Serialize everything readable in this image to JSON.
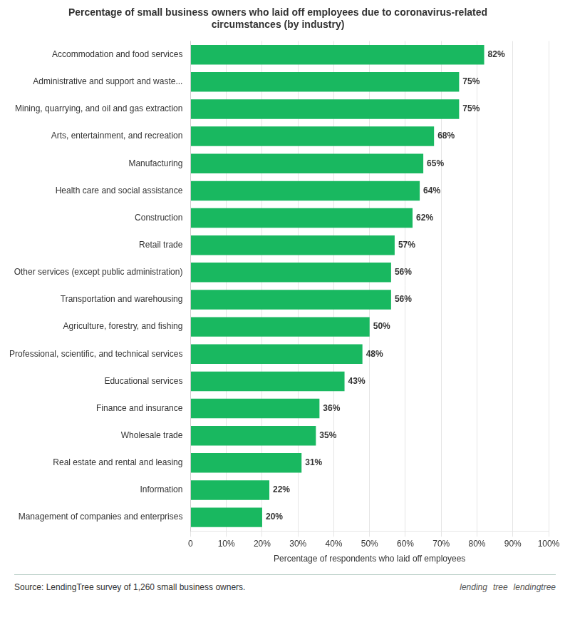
{
  "chart_data": {
    "type": "bar",
    "orientation": "horizontal",
    "title": [
      "Percentage of small business owners who laid off employees due to coronavirus-related",
      "circumstances (by industry)"
    ],
    "x_label": "Percentage of respondents who laid off employees",
    "categories": [
      "Accommodation and food services",
      "Administrative and support and waste...",
      "Mining, quarrying, and oil and gas extraction",
      "Arts, entertainment, and recreation",
      "Manufacturing",
      "Health care and social assistance",
      "Construction",
      "Retail trade",
      "Other services (except public administration)",
      "Transportation and warehousing",
      "Agriculture, forestry, and fishing",
      "Professional, scientific, and technical services",
      "Educational services",
      "Finance and insurance",
      "Wholesale trade",
      "Real estate and rental and leasing",
      "Information",
      "Management of companies and enterprises"
    ],
    "values": [
      82,
      75,
      75,
      68,
      65,
      64,
      62,
      57,
      56,
      56,
      50,
      48,
      43,
      36,
      35,
      31,
      22,
      20
    ],
    "value_labels": [
      "82%",
      "75%",
      "75%",
      "68%",
      "65%",
      "64%",
      "62%",
      "57%",
      "56%",
      "56%",
      "50%",
      "48%",
      "43%",
      "36%",
      "35%",
      "31%",
      "22%",
      "20%"
    ],
    "data_labels": true,
    "color": "#19b860",
    "xlim": [
      0,
      100
    ],
    "xticks": [
      0,
      {
        "value": 10,
        "label": "10%"
      },
      {
        "value": 20,
        "label": "20%"
      },
      {
        "value": 30,
        "label": "30%"
      },
      {
        "value": 40,
        "label": "40%"
      },
      {
        "value": 50,
        "label": "50%"
      },
      {
        "value": 60,
        "label": "60%"
      },
      {
        "value": 70,
        "label": "70%"
      },
      {
        "value": 80,
        "label": "80%"
      },
      {
        "value": 90,
        "label": "90%"
      },
      {
        "value": 100,
        "label": "100%"
      }
    ],
    "grid": true,
    "annotations": [
      "Source: LendingTree survey of 1,260 small business owners.",
      "lending",
      "tree",
      "lendingtree"
    ]
  }
}
